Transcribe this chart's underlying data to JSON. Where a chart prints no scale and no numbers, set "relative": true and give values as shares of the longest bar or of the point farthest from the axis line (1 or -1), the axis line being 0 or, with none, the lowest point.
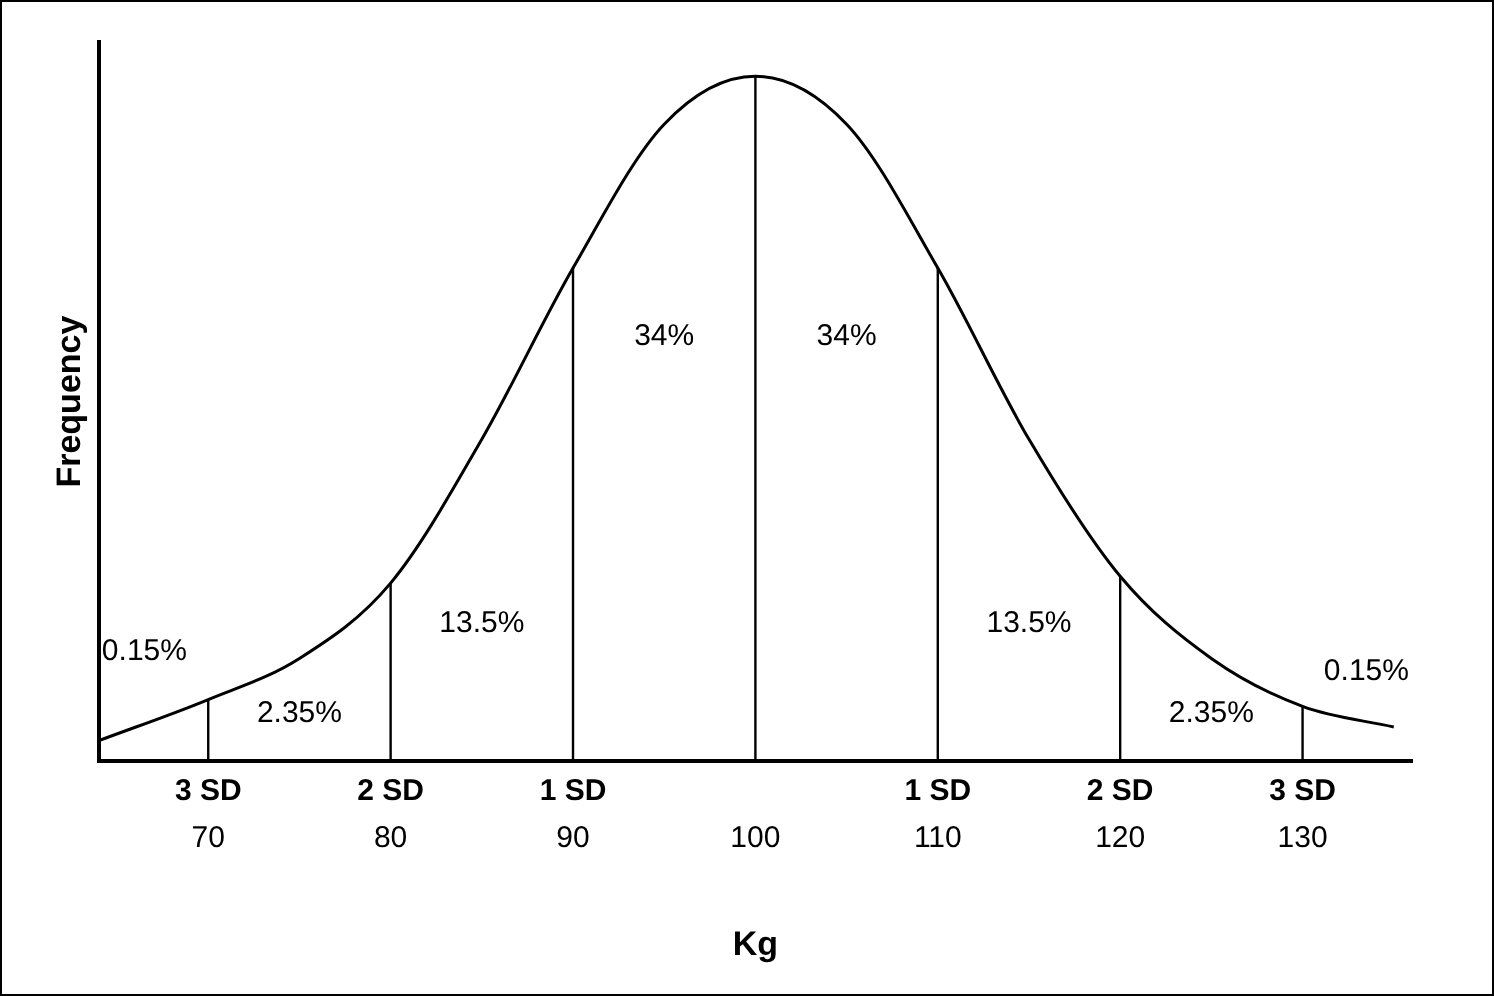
{
  "chart_data": {
    "type": "line",
    "relative": true,
    "xlabel": "Kg",
    "ylabel": "Frequency",
    "x": [
      64,
      70,
      75,
      80,
      85,
      90,
      95,
      100,
      105,
      110,
      115,
      120,
      125,
      130,
      135
    ],
    "series": [
      {
        "color": "#000000",
        "values": [
          0.03,
          0.09,
          0.15,
          0.26,
          0.47,
          0.72,
          0.93,
          1,
          0.93,
          0.72,
          0.47,
          0.27,
          0.15,
          0.08,
          0.05
        ]
      }
    ],
    "xlim": [
      64,
      136
    ],
    "xticks": [
      70,
      80,
      90,
      100,
      110,
      120,
      130
    ],
    "ref_lines": [
      {
        "axis": "x",
        "value": 70,
        "label": "3 SD"
      },
      {
        "axis": "x",
        "value": 80,
        "label": "2 SD"
      },
      {
        "axis": "x",
        "value": 90,
        "label": "1 SD"
      },
      {
        "axis": "x",
        "value": 100
      },
      {
        "axis": "x",
        "value": 110,
        "label": "1 SD"
      },
      {
        "axis": "x",
        "value": 120,
        "label": "2 SD"
      },
      {
        "axis": "x",
        "value": 130,
        "label": "3 SD"
      }
    ],
    "annotations": [
      "0.15%",
      "2.35%",
      "13.5%",
      "34%",
      "34%",
      "13.5%",
      "2.35%",
      "0.15%"
    ],
    "grid": false,
    "legend": false,
    "marker": "none",
    "line_style": "solid"
  }
}
